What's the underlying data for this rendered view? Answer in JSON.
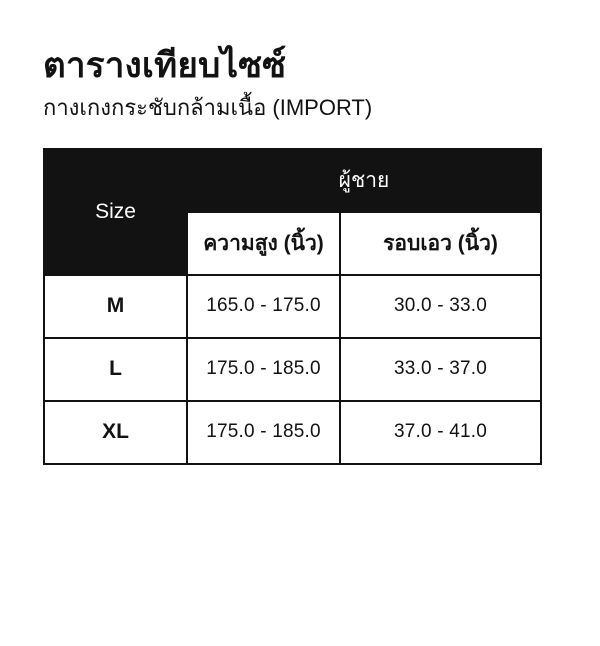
{
  "header": {
    "title": "ตารางเทียบไซซ์",
    "subtitle": "กางเกงกระชับกล้ามเนื้อ (IMPORT)"
  },
  "table": {
    "corner_label": "Size",
    "group_header": "ผู้ชาย",
    "columns": [
      "ความสูง (นิ้ว)",
      "รอบเอว (นิ้ว)"
    ],
    "rows": [
      {
        "size": "M",
        "height": "165.0 - 175.0",
        "waist": "30.0 - 33.0"
      },
      {
        "size": "L",
        "height": "175.0 - 185.0",
        "waist": "33.0 - 37.0"
      },
      {
        "size": "XL",
        "height": "175.0 - 185.0",
        "waist": "37.0 - 41.0"
      }
    ],
    "colors": {
      "header_bg": "#121212",
      "header_text": "#ffffff",
      "border": "#121212",
      "body_text": "#121212",
      "background": "#ffffff"
    }
  }
}
